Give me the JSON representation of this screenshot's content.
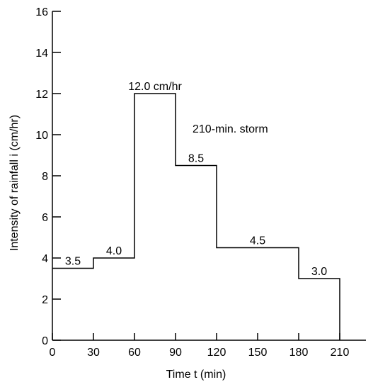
{
  "chart_data": {
    "type": "step",
    "title": "",
    "xlabel": "Time t (min)",
    "ylabel": "Intensity of rainfall i (cm/hr)",
    "xlim": [
      0,
      240
    ],
    "ylim": [
      0,
      16
    ],
    "xticks": [
      0,
      30,
      60,
      90,
      120,
      150,
      180,
      210
    ],
    "yticks": [
      0,
      2,
      4,
      6,
      8,
      10,
      12,
      14,
      16
    ],
    "x_tick_labels": [
      "0",
      "30",
      "60",
      "90",
      "120",
      "150",
      "180",
      "210"
    ],
    "y_tick_labels": [
      "0",
      "2",
      "4",
      "6",
      "8",
      "10",
      "12",
      "14",
      "16"
    ],
    "grid": false,
    "segments": [
      {
        "start": 0,
        "end": 30,
        "value": 3.5,
        "label": "3.5"
      },
      {
        "start": 30,
        "end": 60,
        "value": 4.0,
        "label": "4.0"
      },
      {
        "start": 60,
        "end": 90,
        "value": 12.0,
        "label": "12.0 cm/hr"
      },
      {
        "start": 90,
        "end": 120,
        "value": 8.5,
        "label": "8.5"
      },
      {
        "start": 120,
        "end": 180,
        "value": 4.5,
        "label": "4.5"
      },
      {
        "start": 180,
        "end": 210,
        "value": 3.0,
        "label": "3.0"
      }
    ],
    "annotation": "210-min. storm"
  }
}
